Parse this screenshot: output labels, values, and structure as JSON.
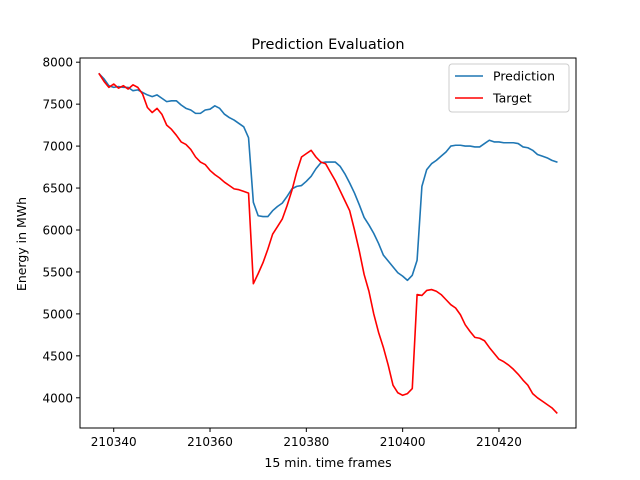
{
  "chart_data": {
    "type": "line",
    "title": "Prediction Evaluation",
    "xlabel": "15 min. time frames",
    "ylabel": "Energy in MWh",
    "xlim": [
      210333,
      210436
    ],
    "ylim": [
      3640,
      8050
    ],
    "xticks": [
      210340,
      210360,
      210380,
      210400,
      210420
    ],
    "yticks": [
      4000,
      4500,
      5000,
      5500,
      6000,
      6500,
      7000,
      7500,
      8000
    ],
    "grid": false,
    "legend_position": "top-right",
    "series": [
      {
        "name": "Prediction",
        "color": "#1f77b4",
        "points": [
          [
            210337,
            7860
          ],
          [
            210338,
            7800
          ],
          [
            210339,
            7720
          ],
          [
            210340,
            7700
          ],
          [
            210341,
            7710
          ],
          [
            210342,
            7700
          ],
          [
            210343,
            7700
          ],
          [
            210344,
            7660
          ],
          [
            210345,
            7670
          ],
          [
            210346,
            7640
          ],
          [
            210347,
            7610
          ],
          [
            210348,
            7590
          ],
          [
            210349,
            7610
          ],
          [
            210350,
            7570
          ],
          [
            210351,
            7530
          ],
          [
            210352,
            7540
          ],
          [
            210353,
            7540
          ],
          [
            210354,
            7490
          ],
          [
            210355,
            7450
          ],
          [
            210356,
            7430
          ],
          [
            210357,
            7390
          ],
          [
            210358,
            7390
          ],
          [
            210359,
            7430
          ],
          [
            210360,
            7440
          ],
          [
            210361,
            7480
          ],
          [
            210362,
            7450
          ],
          [
            210363,
            7380
          ],
          [
            210364,
            7340
          ],
          [
            210365,
            7310
          ],
          [
            210366,
            7270
          ],
          [
            210367,
            7230
          ],
          [
            210368,
            7100
          ],
          [
            210369,
            6330
          ],
          [
            210370,
            6170
          ],
          [
            210371,
            6160
          ],
          [
            210372,
            6160
          ],
          [
            210373,
            6230
          ],
          [
            210374,
            6280
          ],
          [
            210375,
            6320
          ],
          [
            210376,
            6400
          ],
          [
            210377,
            6490
          ],
          [
            210378,
            6520
          ],
          [
            210379,
            6530
          ],
          [
            210380,
            6580
          ],
          [
            210381,
            6640
          ],
          [
            210382,
            6730
          ],
          [
            210383,
            6800
          ],
          [
            210384,
            6810
          ],
          [
            210385,
            6810
          ],
          [
            210386,
            6810
          ],
          [
            210387,
            6760
          ],
          [
            210388,
            6670
          ],
          [
            210389,
            6560
          ],
          [
            210390,
            6440
          ],
          [
            210391,
            6300
          ],
          [
            210392,
            6150
          ],
          [
            210393,
            6060
          ],
          [
            210394,
            5960
          ],
          [
            210395,
            5840
          ],
          [
            210396,
            5700
          ],
          [
            210397,
            5630
          ],
          [
            210398,
            5560
          ],
          [
            210399,
            5490
          ],
          [
            210400,
            5450
          ],
          [
            210401,
            5400
          ],
          [
            210402,
            5460
          ],
          [
            210403,
            5640
          ],
          [
            210404,
            6520
          ],
          [
            210405,
            6720
          ],
          [
            210406,
            6790
          ],
          [
            210407,
            6830
          ],
          [
            210408,
            6880
          ],
          [
            210409,
            6930
          ],
          [
            210410,
            7000
          ],
          [
            210411,
            7010
          ],
          [
            210412,
            7010
          ],
          [
            210413,
            7000
          ],
          [
            210414,
            7000
          ],
          [
            210415,
            6990
          ],
          [
            210416,
            6990
          ],
          [
            210417,
            7030
          ],
          [
            210418,
            7070
          ],
          [
            210419,
            7050
          ],
          [
            210420,
            7050
          ],
          [
            210421,
            7040
          ],
          [
            210422,
            7040
          ],
          [
            210423,
            7040
          ],
          [
            210424,
            7030
          ],
          [
            210425,
            6990
          ],
          [
            210426,
            6980
          ],
          [
            210427,
            6950
          ],
          [
            210428,
            6900
          ],
          [
            210429,
            6880
          ],
          [
            210430,
            6860
          ],
          [
            210431,
            6830
          ],
          [
            210432,
            6810
          ]
        ]
      },
      {
        "name": "Target",
        "color": "#ff0000",
        "points": [
          [
            210337,
            7860
          ],
          [
            210338,
            7770
          ],
          [
            210339,
            7700
          ],
          [
            210340,
            7740
          ],
          [
            210341,
            7690
          ],
          [
            210342,
            7720
          ],
          [
            210343,
            7680
          ],
          [
            210344,
            7730
          ],
          [
            210345,
            7700
          ],
          [
            210346,
            7620
          ],
          [
            210347,
            7460
          ],
          [
            210348,
            7400
          ],
          [
            210349,
            7450
          ],
          [
            210350,
            7380
          ],
          [
            210351,
            7250
          ],
          [
            210352,
            7200
          ],
          [
            210353,
            7130
          ],
          [
            210354,
            7050
          ],
          [
            210355,
            7020
          ],
          [
            210356,
            6960
          ],
          [
            210357,
            6870
          ],
          [
            210358,
            6810
          ],
          [
            210359,
            6780
          ],
          [
            210360,
            6710
          ],
          [
            210361,
            6660
          ],
          [
            210362,
            6620
          ],
          [
            210363,
            6570
          ],
          [
            210364,
            6530
          ],
          [
            210365,
            6490
          ],
          [
            210366,
            6480
          ],
          [
            210367,
            6460
          ],
          [
            210368,
            6440
          ],
          [
            210369,
            5360
          ],
          [
            210370,
            5480
          ],
          [
            210371,
            5610
          ],
          [
            210372,
            5770
          ],
          [
            210373,
            5950
          ],
          [
            210374,
            6040
          ],
          [
            210375,
            6130
          ],
          [
            210376,
            6290
          ],
          [
            210377,
            6470
          ],
          [
            210378,
            6690
          ],
          [
            210379,
            6870
          ],
          [
            210380,
            6910
          ],
          [
            210381,
            6950
          ],
          [
            210382,
            6870
          ],
          [
            210383,
            6810
          ],
          [
            210384,
            6790
          ],
          [
            210385,
            6690
          ],
          [
            210386,
            6590
          ],
          [
            210387,
            6470
          ],
          [
            210388,
            6350
          ],
          [
            210389,
            6230
          ],
          [
            210390,
            6000
          ],
          [
            210391,
            5750
          ],
          [
            210392,
            5470
          ],
          [
            210393,
            5270
          ],
          [
            210394,
            5000
          ],
          [
            210395,
            4780
          ],
          [
            210396,
            4600
          ],
          [
            210397,
            4390
          ],
          [
            210398,
            4150
          ],
          [
            210399,
            4060
          ],
          [
            210400,
            4030
          ],
          [
            210401,
            4050
          ],
          [
            210402,
            4110
          ],
          [
            210403,
            5230
          ],
          [
            210404,
            5220
          ],
          [
            210405,
            5280
          ],
          [
            210406,
            5290
          ],
          [
            210407,
            5270
          ],
          [
            210408,
            5230
          ],
          [
            210409,
            5170
          ],
          [
            210410,
            5110
          ],
          [
            210411,
            5070
          ],
          [
            210412,
            4990
          ],
          [
            210413,
            4870
          ],
          [
            210414,
            4790
          ],
          [
            210415,
            4720
          ],
          [
            210416,
            4710
          ],
          [
            210417,
            4680
          ],
          [
            210418,
            4600
          ],
          [
            210419,
            4530
          ],
          [
            210420,
            4460
          ],
          [
            210421,
            4430
          ],
          [
            210422,
            4390
          ],
          [
            210423,
            4340
          ],
          [
            210424,
            4280
          ],
          [
            210425,
            4210
          ],
          [
            210426,
            4150
          ],
          [
            210427,
            4050
          ],
          [
            210428,
            4000
          ],
          [
            210429,
            3960
          ],
          [
            210430,
            3920
          ],
          [
            210431,
            3880
          ],
          [
            210432,
            3820
          ]
        ]
      }
    ]
  }
}
